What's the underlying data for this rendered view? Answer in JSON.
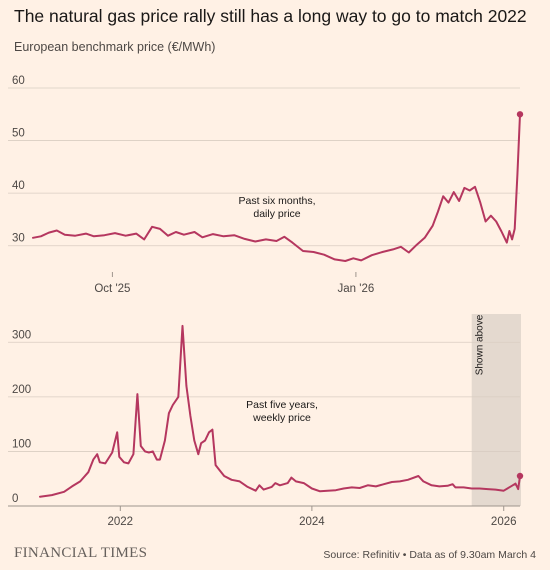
{
  "header": {
    "title": "The natural gas price rally still has a long way to go to match 2022",
    "subtitle": "European benchmark price (€/MWh)"
  },
  "footer": {
    "brand": "FINANCIAL TIMES",
    "source": "Source: Refinitiv • Data as of 9.30am March 4"
  },
  "colors": {
    "background": "#fff1e5",
    "line": "#b5375f",
    "grid": "#d9cdc2",
    "shade": "#e4d9cf"
  },
  "chart_data": [
    {
      "type": "line",
      "annotation": [
        "Past six months,",
        "daily price"
      ],
      "ylim": [
        25,
        60
      ],
      "yticks": [
        30,
        40,
        50,
        60
      ],
      "xticks": [
        {
          "label": "Oct '25",
          "x": "2025-10-01"
        },
        {
          "label": "Jan '26",
          "x": "2026-01-01"
        }
      ],
      "xrange": [
        "2025-09-01",
        "2026-03-04"
      ],
      "series": [
        {
          "points": [
            [
              "2025-09-01",
              31.5
            ],
            [
              "2025-09-04",
              31.8
            ],
            [
              "2025-09-07",
              32.5
            ],
            [
              "2025-09-10",
              32.9
            ],
            [
              "2025-09-13",
              32.1
            ],
            [
              "2025-09-17",
              31.9
            ],
            [
              "2025-09-21",
              32.3
            ],
            [
              "2025-09-24",
              31.8
            ],
            [
              "2025-09-28",
              32.0
            ],
            [
              "2025-10-02",
              32.4
            ],
            [
              "2025-10-06",
              31.9
            ],
            [
              "2025-10-10",
              32.3
            ],
            [
              "2025-10-13",
              31.2
            ],
            [
              "2025-10-16",
              33.6
            ],
            [
              "2025-10-19",
              33.2
            ],
            [
              "2025-10-22",
              31.9
            ],
            [
              "2025-10-25",
              32.6
            ],
            [
              "2025-10-28",
              32.1
            ],
            [
              "2025-11-01",
              32.6
            ],
            [
              "2025-11-04",
              31.6
            ],
            [
              "2025-11-08",
              32.2
            ],
            [
              "2025-11-12",
              31.8
            ],
            [
              "2025-11-16",
              32.0
            ],
            [
              "2025-11-20",
              31.3
            ],
            [
              "2025-11-24",
              30.8
            ],
            [
              "2025-11-28",
              31.2
            ],
            [
              "2025-12-02",
              30.9
            ],
            [
              "2025-12-05",
              31.7
            ],
            [
              "2025-12-08",
              30.6
            ],
            [
              "2025-12-12",
              29.0
            ],
            [
              "2025-12-16",
              28.8
            ],
            [
              "2025-12-20",
              28.3
            ],
            [
              "2025-12-24",
              27.4
            ],
            [
              "2025-12-28",
              27.1
            ],
            [
              "2025-12-31",
              27.6
            ],
            [
              "2026-01-03",
              27.2
            ],
            [
              "2026-01-07",
              28.2
            ],
            [
              "2026-01-11",
              28.8
            ],
            [
              "2026-01-15",
              29.3
            ],
            [
              "2026-01-18",
              29.8
            ],
            [
              "2026-01-21",
              28.7
            ],
            [
              "2026-01-24",
              30.2
            ],
            [
              "2026-01-27",
              31.5
            ],
            [
              "2026-01-30",
              33.8
            ],
            [
              "2026-02-01",
              36.5
            ],
            [
              "2026-02-03",
              39.4
            ],
            [
              "2026-02-05",
              38.2
            ],
            [
              "2026-02-07",
              40.2
            ],
            [
              "2026-02-09",
              38.5
            ],
            [
              "2026-02-11",
              41.0
            ],
            [
              "2026-02-13",
              40.5
            ],
            [
              "2026-02-15",
              41.2
            ],
            [
              "2026-02-17",
              38.2
            ],
            [
              "2026-02-19",
              34.6
            ],
            [
              "2026-02-21",
              35.7
            ],
            [
              "2026-02-23",
              34.6
            ],
            [
              "2026-02-25",
              32.7
            ],
            [
              "2026-02-27",
              30.6
            ],
            [
              "2026-02-28",
              32.8
            ],
            [
              "2026-03-01",
              31.2
            ],
            [
              "2026-03-02",
              33.2
            ],
            [
              "2026-03-03",
              43.5
            ],
            [
              "2026-03-04",
              55.0
            ]
          ]
        }
      ]
    },
    {
      "type": "line",
      "annotation": [
        "Past five years,",
        "weekly price"
      ],
      "shaded_label": "Shown above",
      "shaded_range": [
        "2025-09-01",
        "2026-03-04"
      ],
      "ylim": [
        0,
        350
      ],
      "yticks": [
        0,
        100,
        200,
        300
      ],
      "xticks": [
        {
          "label": "2022",
          "x": "2022-01-01"
        },
        {
          "label": "2024",
          "x": "2024-01-01"
        },
        {
          "label": "2026",
          "x": "2026-01-01"
        }
      ],
      "xrange": [
        "2021-03-01",
        "2026-03-04"
      ],
      "series": [
        {
          "points": [
            [
              "2021-03-01",
              17
            ],
            [
              "2021-04-15",
              20
            ],
            [
              "2021-06-01",
              26
            ],
            [
              "2021-07-01",
              36
            ],
            [
              "2021-08-01",
              45
            ],
            [
              "2021-09-01",
              62
            ],
            [
              "2021-09-20",
              85
            ],
            [
              "2021-10-05",
              95
            ],
            [
              "2021-10-15",
              80
            ],
            [
              "2021-11-05",
              78
            ],
            [
              "2021-12-01",
              98
            ],
            [
              "2021-12-20",
              135
            ],
            [
              "2021-12-28",
              90
            ],
            [
              "2022-01-15",
              80
            ],
            [
              "2022-02-01",
              78
            ],
            [
              "2022-02-20",
              95
            ],
            [
              "2022-03-07",
              205
            ],
            [
              "2022-03-20",
              110
            ],
            [
              "2022-04-05",
              100
            ],
            [
              "2022-04-20",
              98
            ],
            [
              "2022-05-05",
              100
            ],
            [
              "2022-05-20",
              85
            ],
            [
              "2022-06-01",
              85
            ],
            [
              "2022-06-20",
              120
            ],
            [
              "2022-07-05",
              170
            ],
            [
              "2022-07-20",
              185
            ],
            [
              "2022-08-10",
              200
            ],
            [
              "2022-08-26",
              330
            ],
            [
              "2022-09-10",
              220
            ],
            [
              "2022-09-25",
              165
            ],
            [
              "2022-10-10",
              120
            ],
            [
              "2022-10-25",
              95
            ],
            [
              "2022-11-05",
              115
            ],
            [
              "2022-11-20",
              120
            ],
            [
              "2022-12-05",
              135
            ],
            [
              "2022-12-18",
              140
            ],
            [
              "2022-12-30",
              75
            ],
            [
              "2023-01-15",
              65
            ],
            [
              "2023-02-01",
              55
            ],
            [
              "2023-03-01",
              48
            ],
            [
              "2023-04-01",
              45
            ],
            [
              "2023-05-01",
              35
            ],
            [
              "2023-06-01",
              28
            ],
            [
              "2023-06-15",
              38
            ],
            [
              "2023-07-01",
              30
            ],
            [
              "2023-08-01",
              35
            ],
            [
              "2023-08-15",
              42
            ],
            [
              "2023-09-01",
              38
            ],
            [
              "2023-10-01",
              42
            ],
            [
              "2023-10-15",
              52
            ],
            [
              "2023-11-01",
              45
            ],
            [
              "2023-12-01",
              42
            ],
            [
              "2024-01-01",
              32
            ],
            [
              "2024-02-01",
              27
            ],
            [
              "2024-03-01",
              28
            ],
            [
              "2024-04-01",
              29
            ],
            [
              "2024-05-01",
              32
            ],
            [
              "2024-06-01",
              34
            ],
            [
              "2024-07-01",
              33
            ],
            [
              "2024-08-01",
              38
            ],
            [
              "2024-09-01",
              36
            ],
            [
              "2024-10-01",
              40
            ],
            [
              "2024-11-01",
              44
            ],
            [
              "2024-12-01",
              45
            ],
            [
              "2025-01-01",
              48
            ],
            [
              "2025-02-10",
              55
            ],
            [
              "2025-03-01",
              45
            ],
            [
              "2025-04-01",
              38
            ],
            [
              "2025-05-01",
              36
            ],
            [
              "2025-06-01",
              37
            ],
            [
              "2025-06-20",
              40
            ],
            [
              "2025-07-01",
              34
            ],
            [
              "2025-08-01",
              34
            ],
            [
              "2025-09-01",
              32
            ],
            [
              "2025-10-01",
              32
            ],
            [
              "2025-11-01",
              31
            ],
            [
              "2025-12-01",
              30
            ],
            [
              "2026-01-01",
              28
            ],
            [
              "2026-02-01",
              37
            ],
            [
              "2026-02-15",
              41
            ],
            [
              "2026-02-25",
              31
            ],
            [
              "2026-03-04",
              55
            ]
          ]
        }
      ]
    }
  ]
}
